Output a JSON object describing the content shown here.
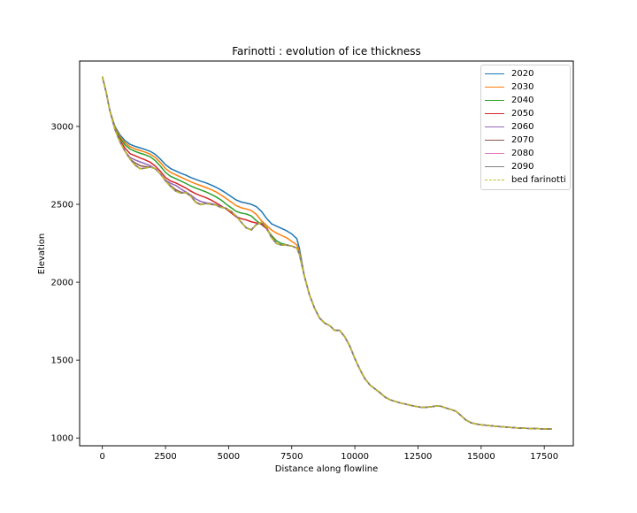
{
  "chart_data": {
    "type": "line",
    "title": "Farinotti : evolution of ice thickness",
    "xlabel": "Distance along flowline",
    "ylabel": "Elevation",
    "xlim": [
      -900,
      18650
    ],
    "ylim": [
      950,
      3420
    ],
    "xticks": [
      0,
      2500,
      5000,
      7500,
      10000,
      12500,
      15000,
      17500
    ],
    "yticks": [
      1000,
      1500,
      2000,
      2500,
      3000
    ],
    "grid": false,
    "legend_position": "top-right",
    "bed": {
      "name": "bed farinotti",
      "color": "#bcbd22",
      "x": [
        0,
        150,
        300,
        500,
        700,
        900,
        1100,
        1300,
        1500,
        1700,
        1900,
        2100,
        2300,
        2500,
        2700,
        2900,
        3100,
        3300,
        3500,
        3700,
        3900,
        4100,
        4300,
        4500,
        4700,
        4900,
        5100,
        5300,
        5500,
        5700,
        5900,
        6100,
        6300,
        6500,
        6700,
        6900,
        7100,
        7300,
        7500,
        7700,
        7800,
        8000,
        8200,
        8400,
        8600,
        8800,
        9000,
        9200,
        9400,
        9600,
        9800,
        10000,
        10200,
        10400,
        10600,
        10800,
        11000,
        11200,
        11400,
        11600,
        11800,
        12000,
        12200,
        12400,
        12600,
        12800,
        13000,
        13200,
        13400,
        13600,
        13800,
        14000,
        14200,
        14400,
        14600,
        14800,
        15000,
        15300,
        15600,
        16000,
        16400,
        16800,
        17200,
        17500,
        17800
      ],
      "y": [
        3320,
        3220,
        3100,
        2980,
        2900,
        2840,
        2790,
        2750,
        2728,
        2732,
        2740,
        2728,
        2695,
        2650,
        2615,
        2585,
        2572,
        2575,
        2552,
        2512,
        2498,
        2505,
        2500,
        2495,
        2480,
        2475,
        2455,
        2425,
        2385,
        2348,
        2335,
        2370,
        2385,
        2355,
        2285,
        2248,
        2238,
        2238,
        2232,
        2220,
        2180,
        2040,
        1920,
        1835,
        1770,
        1738,
        1722,
        1690,
        1690,
        1650,
        1590,
        1510,
        1440,
        1380,
        1340,
        1315,
        1290,
        1262,
        1245,
        1235,
        1225,
        1218,
        1210,
        1203,
        1198,
        1197,
        1200,
        1205,
        1204,
        1193,
        1183,
        1172,
        1145,
        1115,
        1098,
        1090,
        1085,
        1080,
        1075,
        1070,
        1065,
        1062,
        1060,
        1058,
        1058
      ]
    },
    "series": [
      {
        "name": "2020",
        "color": "#1f77b4",
        "y": [
          3320,
          3220,
          3100,
          3000,
          2945,
          2908,
          2885,
          2872,
          2862,
          2852,
          2840,
          2820,
          2790,
          2755,
          2730,
          2715,
          2700,
          2688,
          2672,
          2660,
          2648,
          2638,
          2625,
          2610,
          2592,
          2572,
          2550,
          2528,
          2515,
          2508,
          2500,
          2485,
          2455,
          2410,
          2375,
          2360,
          2345,
          2330,
          2310,
          2280,
          2220
        ]
      },
      {
        "name": "2030",
        "color": "#ff7f0e",
        "y": [
          3320,
          3220,
          3100,
          2992,
          2935,
          2895,
          2870,
          2855,
          2845,
          2835,
          2822,
          2800,
          2768,
          2730,
          2705,
          2690,
          2675,
          2660,
          2645,
          2632,
          2620,
          2608,
          2595,
          2580,
          2560,
          2538,
          2515,
          2492,
          2478,
          2470,
          2460,
          2435,
          2395,
          2365,
          2335,
          2315,
          2300,
          2285,
          2262,
          2240,
          2200
        ]
      },
      {
        "name": "2040",
        "color": "#2ca02c",
        "y": [
          3320,
          3220,
          3100,
          2985,
          2925,
          2882,
          2855,
          2840,
          2828,
          2818,
          2805,
          2780,
          2745,
          2705,
          2680,
          2665,
          2650,
          2635,
          2618,
          2604,
          2592,
          2580,
          2565,
          2548,
          2528,
          2502,
          2478,
          2455,
          2444,
          2438,
          2425,
          2395,
          2370,
          2345,
          2300,
          2265,
          2248,
          2240,
          2232,
          2220,
          2190
        ]
      },
      {
        "name": "2050",
        "color": "#d62728",
        "y": [
          3320,
          3220,
          3100,
          2980,
          2912,
          2860,
          2825,
          2812,
          2798,
          2785,
          2770,
          2745,
          2712,
          2672,
          2650,
          2638,
          2622,
          2605,
          2585,
          2568,
          2555,
          2543,
          2528,
          2510,
          2490,
          2470,
          2445,
          2420,
          2408,
          2400,
          2388,
          2380,
          2375,
          2345,
          2290,
          2250,
          2238,
          2238,
          2232,
          2220,
          2185
        ]
      },
      {
        "name": "2060",
        "color": "#9467bd",
        "y": [
          3320,
          3220,
          3100,
          2980,
          2900,
          2840,
          2800,
          2785,
          2772,
          2760,
          2748,
          2728,
          2695,
          2655,
          2635,
          2622,
          2600,
          2580,
          2560,
          2535,
          2518,
          2510,
          2505,
          2498,
          2485,
          2475,
          2455,
          2425,
          2385,
          2350,
          2338,
          2372,
          2385,
          2355,
          2285,
          2248,
          2238,
          2238,
          2232,
          2220,
          2180
        ]
      },
      {
        "name": "2070",
        "color": "#8c564b",
        "y": [
          3320,
          3220,
          3100,
          2980,
          2900,
          2840,
          2790,
          2765,
          2748,
          2742,
          2740,
          2728,
          2695,
          2650,
          2620,
          2595,
          2578,
          2575,
          2555,
          2515,
          2500,
          2505,
          2500,
          2495,
          2480,
          2475,
          2455,
          2425,
          2385,
          2348,
          2335,
          2370,
          2385,
          2355,
          2285,
          2248,
          2238,
          2238,
          2232,
          2220,
          2180
        ]
      },
      {
        "name": "2080",
        "color": "#e377c2",
        "y": [
          3320,
          3220,
          3100,
          2980,
          2900,
          2840,
          2790,
          2752,
          2730,
          2733,
          2740,
          2728,
          2695,
          2650,
          2615,
          2586,
          2573,
          2575,
          2552,
          2512,
          2498,
          2505,
          2500,
          2495,
          2480,
          2475,
          2455,
          2425,
          2385,
          2348,
          2335,
          2370,
          2385,
          2355,
          2285,
          2248,
          2238,
          2238,
          2232,
          2220,
          2180
        ]
      },
      {
        "name": "2090",
        "color": "#7f7f7f",
        "y": [
          3320,
          3220,
          3100,
          2980,
          2900,
          2840,
          2790,
          2750,
          2728,
          2732,
          2740,
          2728,
          2695,
          2650,
          2615,
          2585,
          2572,
          2575,
          2552,
          2512,
          2498,
          2505,
          2500,
          2495,
          2480,
          2475,
          2455,
          2425,
          2385,
          2348,
          2335,
          2370,
          2385,
          2355,
          2285,
          2248,
          2238,
          2238,
          2232,
          2220,
          2180
        ]
      }
    ]
  }
}
